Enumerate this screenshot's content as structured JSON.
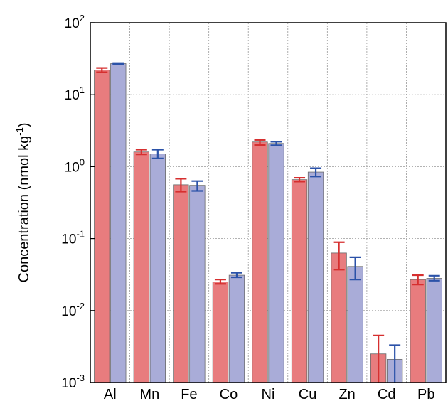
{
  "chart_data": {
    "type": "bar",
    "ylabel": {
      "main": "Concentration (nmol kg",
      "sup": "-1",
      "close": ")"
    },
    "yscale": "log",
    "ylim": [
      0.001,
      100
    ],
    "yticks": [
      {
        "base": "10",
        "exp": "-3"
      },
      {
        "base": "10",
        "exp": "-2"
      },
      {
        "base": "10",
        "exp": "-1"
      },
      {
        "base": "10",
        "exp": "0"
      },
      {
        "base": "10",
        "exp": "1"
      },
      {
        "base": "10",
        "exp": "2"
      }
    ],
    "grid": true,
    "categories": [
      "Al",
      "Mn",
      "Fe",
      "Co",
      "Ni",
      "Cu",
      "Zn",
      "Cd",
      "Pb"
    ],
    "series": [
      {
        "color": "#e87c7e",
        "errcolor": "#d62f2f",
        "values": [
          22,
          1.6,
          0.56,
          0.025,
          2.2,
          0.66,
          0.063,
          0.0025,
          0.027
        ],
        "err_low": [
          20.5,
          1.48,
          0.45,
          0.0235,
          2.0,
          0.62,
          0.037,
          0.001,
          0.023
        ],
        "err_high": [
          23.5,
          1.72,
          0.68,
          0.027,
          2.35,
          0.7,
          0.089,
          0.0045,
          0.031
        ]
      },
      {
        "color": "#a9acd8",
        "errcolor": "#2b52a8",
        "values": [
          27,
          1.5,
          0.55,
          0.031,
          2.1,
          0.84,
          0.041,
          0.0021,
          0.028
        ],
        "err_low": [
          26.5,
          1.3,
          0.46,
          0.029,
          1.98,
          0.73,
          0.027,
          0.001,
          0.026
        ],
        "err_high": [
          27.5,
          1.72,
          0.63,
          0.0335,
          2.22,
          0.95,
          0.055,
          0.0033,
          0.0305
        ]
      }
    ]
  }
}
